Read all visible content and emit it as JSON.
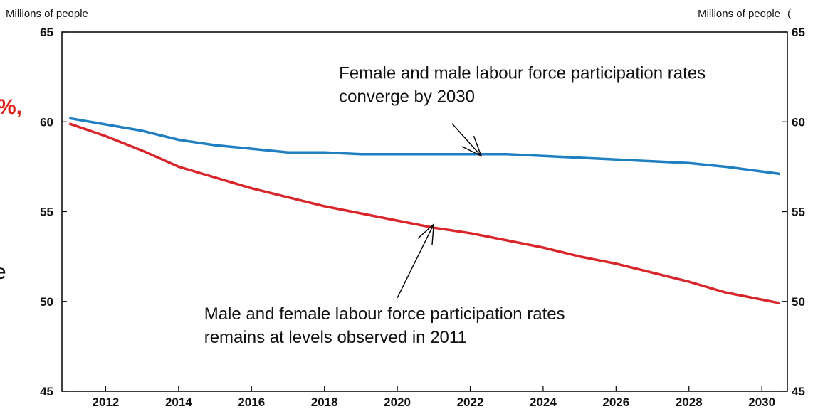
{
  "chart_data": {
    "type": "line",
    "left_axis_label": "Millions of people",
    "right_axis_label": "Millions of people",
    "right_axis_glyph": "(",
    "ylim": [
      45,
      65
    ],
    "yticks": [
      "45",
      "50",
      "55",
      "60",
      "65"
    ],
    "xlim": [
      2010.8,
      2030.7
    ],
    "xticks": [
      "2012",
      "2014",
      "2016",
      "2018",
      "2020",
      "2022",
      "2024",
      "2026",
      "2028",
      "2030"
    ],
    "grid": false,
    "legend": "none",
    "series": [
      {
        "color": "#1f7fc1",
        "x": [
          2011,
          2012,
          2013,
          2014,
          2015,
          2016,
          2017,
          2018,
          2019,
          2020,
          2021,
          2022,
          2023,
          2024,
          2025,
          2026,
          2027,
          2028,
          2029,
          2030.5
        ],
        "y": [
          60.2,
          59.85,
          59.5,
          59.0,
          58.7,
          58.5,
          58.3,
          58.3,
          58.2,
          58.2,
          58.2,
          58.2,
          58.2,
          58.1,
          58.0,
          57.9,
          57.8,
          57.7,
          57.5,
          57.1
        ]
      },
      {
        "color": "#d9262b",
        "x": [
          2011,
          2012,
          2013,
          2014,
          2015,
          2016,
          2017,
          2018,
          2019,
          2020,
          2021,
          2022,
          2023,
          2024,
          2025,
          2026,
          2027,
          2028,
          2029,
          2030.5
        ],
        "y": [
          59.9,
          59.2,
          58.4,
          57.5,
          56.9,
          56.3,
          55.8,
          55.3,
          54.9,
          54.5,
          54.1,
          53.8,
          53.4,
          53.0,
          52.5,
          52.1,
          51.6,
          51.1,
          50.5,
          49.9
        ]
      }
    ],
    "annotations": [
      {
        "lines": [
          "Female and male labour force participation rates",
          "converge by 2030"
        ],
        "text_x": 2018.4,
        "text_y": 62.4,
        "arrow": {
          "from": [
            2021.5,
            59.9
          ],
          "to": [
            2022.3,
            58.1
          ]
        }
      },
      {
        "lines": [
          "Male and female labour force participation rates",
          "remains at levels observed in 2011"
        ],
        "text_x": 2014.7,
        "text_y": 49.0,
        "arrow": {
          "from": [
            2020.0,
            50.2
          ],
          "to": [
            2021.0,
            54.3
          ]
        }
      }
    ]
  },
  "cropped_fragments": {
    "percent_comma": "%,",
    "letter": "e"
  }
}
